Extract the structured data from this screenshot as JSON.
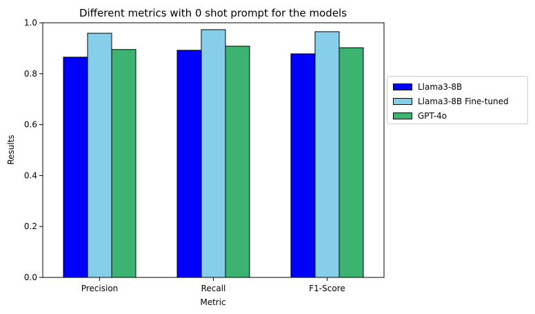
{
  "chart_data": {
    "type": "bar",
    "title": "Different metrics with 0 shot prompt for the models",
    "xlabel": "Metric",
    "ylabel": "Results",
    "categories": [
      "Precision",
      "Recall",
      "F1-Score"
    ],
    "ylim": [
      0,
      1.0
    ],
    "yticks": [
      "0.0",
      "0.2",
      "0.4",
      "0.6",
      "0.8",
      "1.0"
    ],
    "grid": false,
    "legend_position": "right",
    "series": [
      {
        "name": "Llama3-8B",
        "color": "#0000ff",
        "values": [
          0.865,
          0.892,
          0.878
        ]
      },
      {
        "name": "Llama3-8B Fine-tuned",
        "color": "#87ceeb",
        "values": [
          0.959,
          0.973,
          0.965
        ]
      },
      {
        "name": "GPT-4o",
        "color": "#3cb371",
        "values": [
          0.895,
          0.908,
          0.902
        ]
      }
    ]
  }
}
